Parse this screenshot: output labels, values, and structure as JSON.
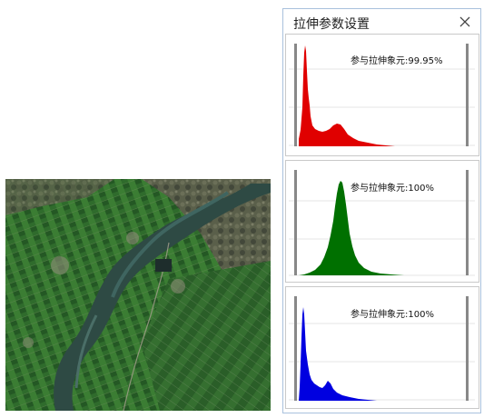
{
  "dialog": {
    "title": "拉伸参数设置"
  },
  "histograms": [
    {
      "band": "red",
      "color": "#e00000",
      "label": "参与拉伸象元:99.95%"
    },
    {
      "band": "green",
      "color": "#007000",
      "label": "参与拉伸象元:100%"
    },
    {
      "band": "blue",
      "color": "#0000e0",
      "label": "参与拉伸象元:100%"
    }
  ],
  "icons": {
    "close": "close-icon"
  }
}
